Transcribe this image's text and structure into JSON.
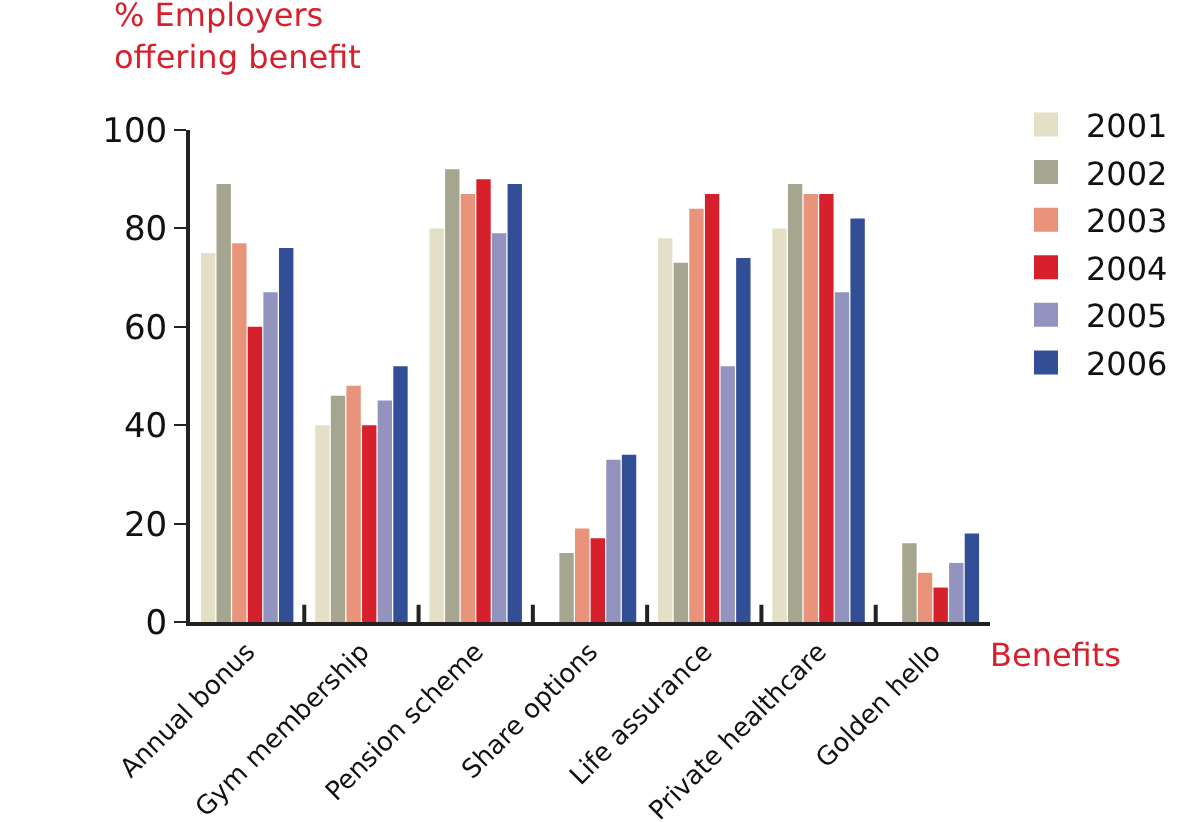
{
  "chart_data": {
    "type": "bar",
    "ylabel": "% Employers\noffering benefit",
    "xlabel": "Benefits",
    "categories": [
      "Annual bonus",
      "Gym membership",
      "Pension scheme",
      "Share options",
      "Life assurance",
      "Private healthcare",
      "Golden hello"
    ],
    "series": [
      {
        "name": "2001",
        "color": "#e3e0c7",
        "values": [
          75,
          40,
          80,
          null,
          78,
          80,
          null
        ]
      },
      {
        "name": "2002",
        "color": "#a6a590",
        "values": [
          89,
          46,
          92,
          14,
          73,
          89,
          16
        ]
      },
      {
        "name": "2003",
        "color": "#e8937a",
        "values": [
          77,
          48,
          87,
          19,
          84,
          87,
          10
        ]
      },
      {
        "name": "2004",
        "color": "#d6202c",
        "values": [
          60,
          40,
          90,
          17,
          87,
          87,
          7
        ]
      },
      {
        "name": "2005",
        "color": "#9393c0",
        "values": [
          67,
          45,
          79,
          33,
          52,
          67,
          12
        ]
      },
      {
        "name": "2006",
        "color": "#324e96",
        "values": [
          76,
          52,
          89,
          34,
          74,
          82,
          18
        ]
      }
    ],
    "ylim": [
      0,
      100
    ],
    "yticks": [
      0,
      20,
      40,
      60,
      80,
      100
    ],
    "grid": false,
    "legend": "right"
  }
}
